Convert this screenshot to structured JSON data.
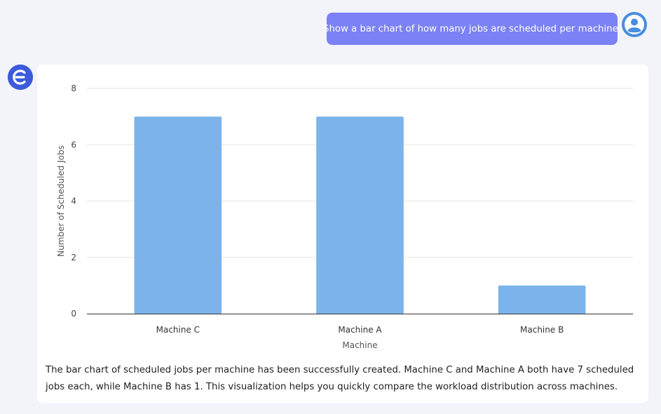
{
  "conversation": {
    "user_message": "Show a bar chart of how many jobs are scheduled per machine.",
    "assistant_summary": "The bar chart of scheduled jobs per machine has been successfully created. Machine C and Machine A both have 7 scheduled jobs each, while Machine B has 1. This visualization helps you quickly compare the workload distribution across machines."
  },
  "icons": {
    "user_avatar": "user-avatar-icon",
    "assistant_avatar": "assistant-logo-icon"
  },
  "colors": {
    "user_bubble": "#7b82f5",
    "bar": "#7cb3ea",
    "assistant_logo": "#3b5bdb"
  },
  "chart_data": {
    "type": "bar",
    "categories": [
      "Machine C",
      "Machine A",
      "Machine B"
    ],
    "values": [
      7,
      7,
      1
    ],
    "title": "",
    "xlabel": "Machine",
    "ylabel": "Number of Scheduled Jobs",
    "ylim": [
      0,
      8
    ],
    "yticks": [
      0,
      2,
      4,
      6,
      8
    ],
    "grid": true,
    "legend": "none"
  }
}
